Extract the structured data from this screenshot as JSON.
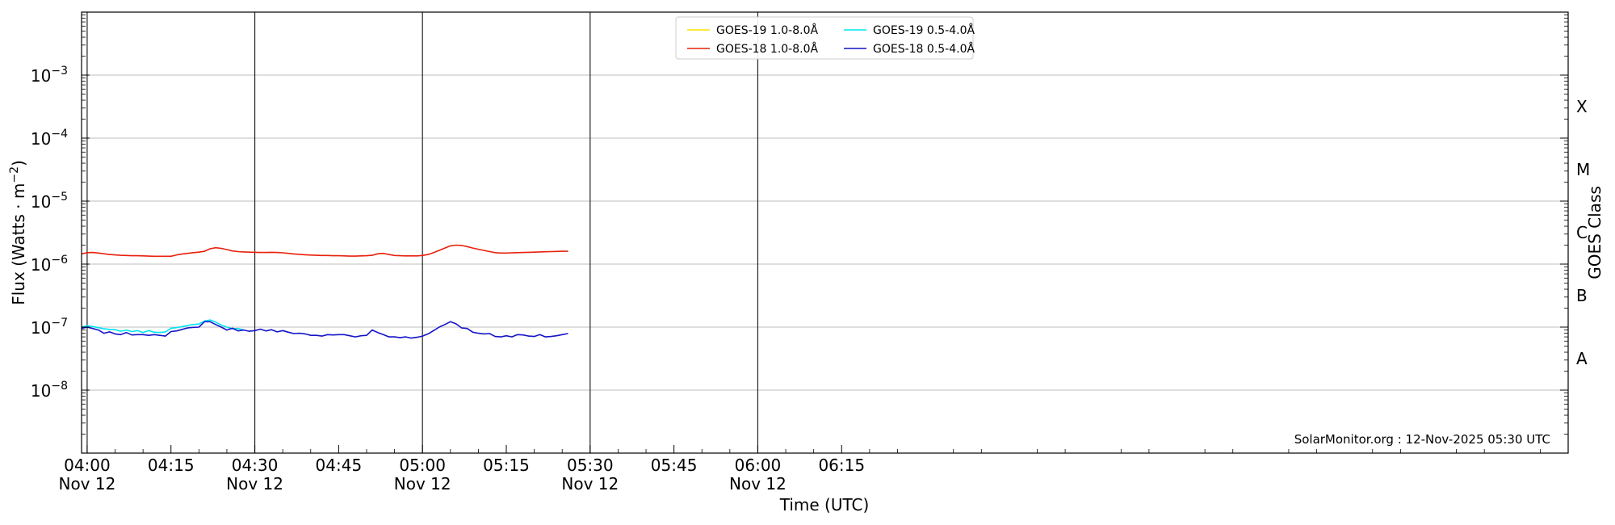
{
  "chart_data": {
    "type": "line",
    "title": "",
    "xlabel": "Time (UTC)",
    "ylabel_main": "Flux (Watts · m",
    "ylabel_sup": "−2",
    "ylabel_tail": ")",
    "right_label": "GOES Class",
    "yscale": "log",
    "ylim": [
      1e-09,
      0.01
    ],
    "xlim_minutes": [
      -1,
      265
    ],
    "grid": "horizontal at decades",
    "legend_position": "top-center",
    "watermark": "SolarMonitor.org : 12-Nov-2025 05:30 UTC",
    "y_ticks": [
      {
        "exp": -8,
        "base": "10",
        "power": "−8"
      },
      {
        "exp": -7,
        "base": "10",
        "power": "−7"
      },
      {
        "exp": -6,
        "base": "10",
        "power": "−6"
      },
      {
        "exp": -5,
        "base": "10",
        "power": "−5"
      },
      {
        "exp": -4,
        "base": "10",
        "power": "−4"
      },
      {
        "exp": -3,
        "base": "10",
        "power": "−3"
      }
    ],
    "x_ticks": [
      {
        "t": 0,
        "time": "04:00",
        "date": "Nov 12"
      },
      {
        "t": 15,
        "time": "04:15",
        "date": ""
      },
      {
        "t": 30,
        "time": "04:30",
        "date": "Nov 12"
      },
      {
        "t": 45,
        "time": "04:45",
        "date": ""
      },
      {
        "t": 60,
        "time": "05:00",
        "date": "Nov 12"
      },
      {
        "t": 75,
        "time": "05:15",
        "date": ""
      },
      {
        "t": 90,
        "time": "05:30",
        "date": "Nov 12"
      },
      {
        "t": 105,
        "time": "05:45",
        "date": ""
      },
      {
        "t": 120,
        "time": "06:00",
        "date": "Nov 12"
      },
      {
        "t": 135,
        "time": "06:15",
        "date": ""
      }
    ],
    "vertical_lines_t": [
      0,
      30,
      60,
      90,
      120
    ],
    "goes_classes": [
      {
        "label": "A",
        "exp": -7.5
      },
      {
        "label": "B",
        "exp": -6.5
      },
      {
        "label": "C",
        "exp": -5.5
      },
      {
        "label": "M",
        "exp": -4.5
      },
      {
        "label": "X",
        "exp": -3.5
      }
    ],
    "series": [
      {
        "name": "GOES-19 1.0-8.0Å",
        "color": "#FFE000",
        "t": [],
        "values": []
      },
      {
        "name": "GOES-18 1.0-8.0Å",
        "color": "#E8200C",
        "t": [
          -1,
          0,
          1,
          2,
          3,
          4,
          5,
          6,
          7,
          8,
          9,
          10,
          11,
          12,
          13,
          14,
          15,
          16,
          17,
          18,
          19,
          20,
          21,
          22,
          23,
          24,
          25,
          26,
          27,
          28,
          29,
          30,
          31,
          32,
          33,
          34,
          35,
          36,
          37,
          38,
          39,
          40,
          41,
          42,
          43,
          44,
          45,
          46,
          47,
          48,
          49,
          50,
          51,
          52,
          53,
          54,
          55,
          56,
          57,
          58,
          59,
          60,
          61,
          62,
          63,
          64,
          65,
          66,
          67,
          68,
          69,
          70,
          71,
          72,
          73,
          74,
          75,
          76,
          77,
          78,
          79,
          80,
          81,
          82,
          83,
          84,
          85,
          86
        ],
        "values": [
          1.45e-06,
          1.52e-06,
          1.53e-06,
          1.5e-06,
          1.46e-06,
          1.42e-06,
          1.4e-06,
          1.38e-06,
          1.37e-06,
          1.36e-06,
          1.36e-06,
          1.35e-06,
          1.34e-06,
          1.33e-06,
          1.33e-06,
          1.33e-06,
          1.33e-06,
          1.4e-06,
          1.45e-06,
          1.48e-06,
          1.52e-06,
          1.55e-06,
          1.6e-06,
          1.75e-06,
          1.82e-06,
          1.78e-06,
          1.7e-06,
          1.62e-06,
          1.58e-06,
          1.56e-06,
          1.55e-06,
          1.54e-06,
          1.53e-06,
          1.53e-06,
          1.54e-06,
          1.53e-06,
          1.51e-06,
          1.48e-06,
          1.45e-06,
          1.43e-06,
          1.41e-06,
          1.39e-06,
          1.38e-06,
          1.37e-06,
          1.37e-06,
          1.36e-06,
          1.36e-06,
          1.35e-06,
          1.34e-06,
          1.34e-06,
          1.35e-06,
          1.36e-06,
          1.38e-06,
          1.46e-06,
          1.48e-06,
          1.42e-06,
          1.37e-06,
          1.36e-06,
          1.35e-06,
          1.35e-06,
          1.35e-06,
          1.37e-06,
          1.42e-06,
          1.52e-06,
          1.65e-06,
          1.8e-06,
          1.95e-06,
          2e-06,
          1.98e-06,
          1.9e-06,
          1.8e-06,
          1.72e-06,
          1.65e-06,
          1.58e-06,
          1.52e-06,
          1.5e-06,
          1.5e-06,
          1.51e-06,
          1.52e-06,
          1.53e-06,
          1.54e-06,
          1.55e-06,
          1.56e-06,
          1.57e-06,
          1.58e-06,
          1.59e-06,
          1.6e-06,
          1.6e-06
        ]
      },
      {
        "name": "GOES-19 0.5-4.0Å",
        "color": "#00E5EE",
        "t": [
          -1,
          0,
          1,
          2,
          3,
          4,
          5,
          6,
          7,
          8,
          9,
          10,
          11,
          12,
          13,
          14,
          15,
          16,
          17,
          18,
          19,
          20,
          21,
          22,
          23,
          24,
          25,
          26,
          27,
          28
        ],
        "values": [
          1e-07,
          1.05e-07,
          1.02e-07,
          9.8e-08,
          9.4e-08,
          9.2e-08,
          9.1e-08,
          8.6e-08,
          9e-08,
          8.5e-08,
          8.8e-08,
          8.2e-08,
          8.8e-08,
          8.3e-08,
          8.2e-08,
          8.4e-08,
          9.6e-08,
          9.8e-08,
          1.02e-07,
          1.06e-07,
          1.1e-07,
          1.12e-07,
          1.25e-07,
          1.3e-07,
          1.2e-07,
          1.08e-07,
          1e-07,
          9.4e-08,
          9.5e-08,
          9e-08
        ]
      },
      {
        "name": "GOES-18 0.5-4.0Å",
        "color": "#1414C8",
        "t": [
          -1,
          0,
          1,
          2,
          3,
          4,
          5,
          6,
          7,
          8,
          9,
          10,
          11,
          12,
          13,
          14,
          15,
          16,
          17,
          18,
          19,
          20,
          21,
          22,
          23,
          24,
          25,
          26,
          27,
          28,
          29,
          30,
          31,
          32,
          33,
          34,
          35,
          36,
          37,
          38,
          39,
          40,
          41,
          42,
          43,
          44,
          45,
          46,
          47,
          48,
          49,
          50,
          51,
          52,
          53,
          54,
          55,
          56,
          57,
          58,
          59,
          60,
          61,
          62,
          63,
          64,
          65,
          66,
          67,
          68,
          69,
          70,
          71,
          72,
          73,
          74,
          75,
          76,
          77,
          78,
          79,
          80,
          81,
          82,
          83,
          84,
          85,
          86
        ],
        "values": [
          9.5e-08,
          1e-07,
          9.5e-08,
          9e-08,
          8e-08,
          8.4e-08,
          7.8e-08,
          7.6e-08,
          8.2e-08,
          7.5e-08,
          7.6e-08,
          7.6e-08,
          7.4e-08,
          7.6e-08,
          7.4e-08,
          7.2e-08,
          8.5e-08,
          8.7e-08,
          9.2e-08,
          9.7e-08,
          9.9e-08,
          1e-07,
          1.22e-07,
          1.22e-07,
          1.1e-07,
          1e-07,
          9e-08,
          9.6e-08,
          8.7e-08,
          9e-08,
          8.6e-08,
          8.8e-08,
          9.3e-08,
          8.7e-08,
          9.1e-08,
          8.4e-08,
          8.8e-08,
          8.3e-08,
          7.9e-08,
          8e-08,
          7.8e-08,
          7.4e-08,
          7.4e-08,
          7.2e-08,
          7.6e-08,
          7.5e-08,
          7.6e-08,
          7.6e-08,
          7.3e-08,
          7e-08,
          7.3e-08,
          7.4e-08,
          9e-08,
          8.2e-08,
          7.6e-08,
          7e-08,
          7e-08,
          6.8e-08,
          7e-08,
          6.7e-08,
          6.9e-08,
          7.2e-08,
          7.8e-08,
          8.8e-08,
          1e-07,
          1.1e-07,
          1.22e-07,
          1.13e-07,
          9.7e-08,
          9.5e-08,
          8.3e-08,
          8e-08,
          7.8e-08,
          7.9e-08,
          7.1e-08,
          7e-08,
          7.3e-08,
          7e-08,
          7.6e-08,
          7.5e-08,
          7.2e-08,
          7.1e-08,
          7.6e-08,
          7e-08,
          7.1e-08,
          7.3e-08,
          7.6e-08,
          7.9e-08
        ]
      }
    ]
  }
}
